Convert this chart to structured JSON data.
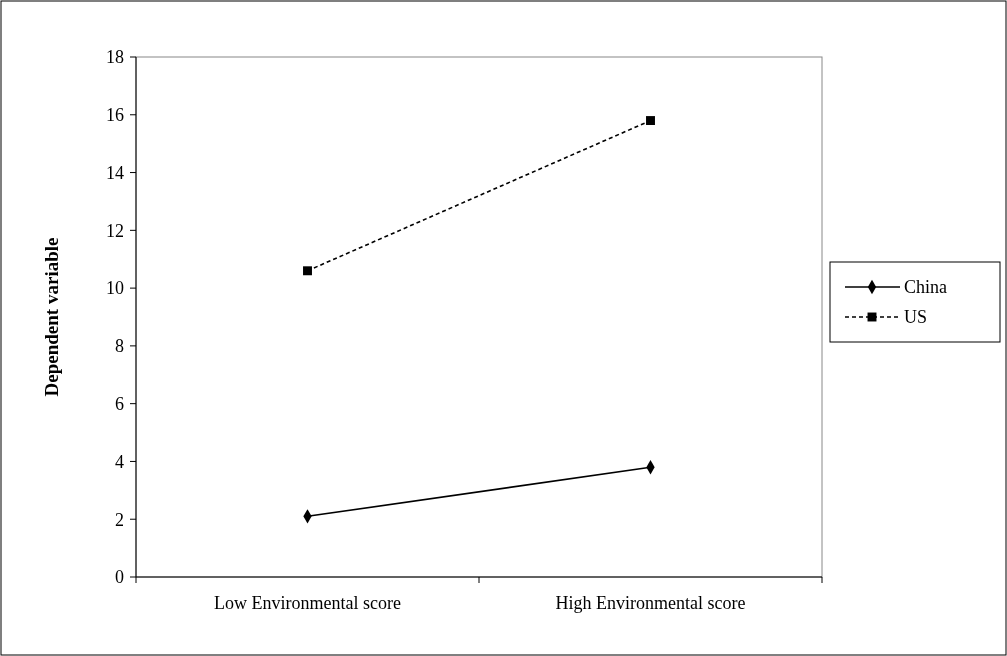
{
  "chart_data": {
    "type": "line",
    "ylabel": "Dependent variable",
    "categories": [
      "Low Environmental score",
      "High Environmental score"
    ],
    "series": [
      {
        "name": "China",
        "color": "#000000",
        "values": [
          2.1,
          3.8
        ],
        "marker": "diamond",
        "line_style": "solid"
      },
      {
        "name": "US",
        "color": "#000000",
        "values": [
          10.6,
          15.8
        ],
        "marker": "square",
        "line_style": "dashed"
      }
    ],
    "ylim": [
      0,
      18
    ],
    "yticks": [
      0,
      2,
      4,
      6,
      8,
      10,
      12,
      14,
      16,
      18
    ],
    "grid": false,
    "legend": "right"
  }
}
